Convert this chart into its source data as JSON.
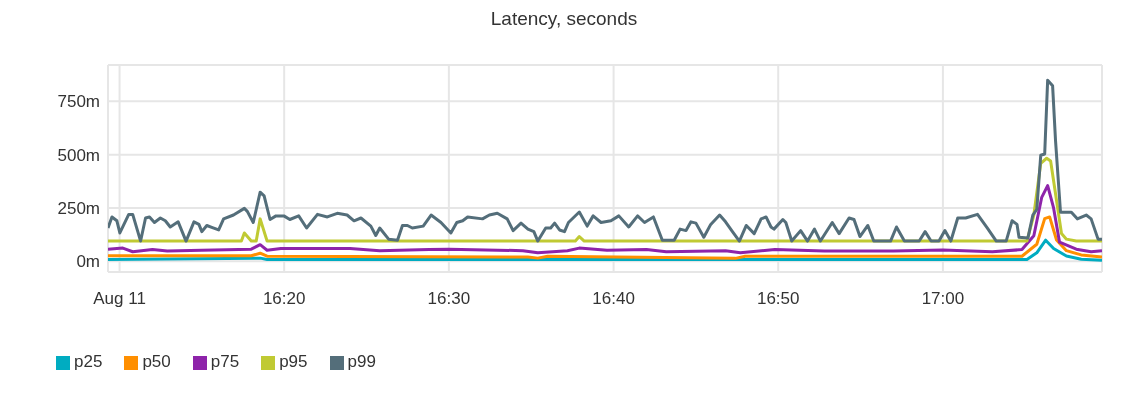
{
  "chart_data": {
    "type": "line",
    "title": "Latency, seconds",
    "xlim": [
      16.155,
      17.161
    ],
    "xticks": [
      {
        "value": 16.1667,
        "label": "Aug 11"
      },
      {
        "value": 16.3333,
        "label": "16:20"
      },
      {
        "value": 16.5,
        "label": "16:30"
      },
      {
        "value": 16.6667,
        "label": "16:40"
      },
      {
        "value": 16.8333,
        "label": "16:50"
      },
      {
        "value": 17.0,
        "label": "17:00"
      }
    ],
    "ylim": [
      -50,
      920
    ],
    "yticks": [
      {
        "value": 0,
        "label": "0m"
      },
      {
        "value": 250,
        "label": "250m"
      },
      {
        "value": 500,
        "label": "500m"
      },
      {
        "value": 750,
        "label": "750m"
      }
    ],
    "grid": true,
    "legend": "bottom left",
    "series": [
      {
        "name": "p25",
        "color": "#00acc1",
        "x": [
          16.155,
          16.309,
          16.316,
          17.085,
          17.095,
          17.104,
          17.112,
          17.125,
          17.14,
          17.161
        ],
        "values": [
          9,
          15,
          9,
          9,
          40,
          99,
          60,
          25,
          10,
          5
        ]
      },
      {
        "name": "p50",
        "color": "#ff8f00",
        "x": [
          16.155,
          16.3,
          16.309,
          16.316,
          16.58,
          16.59,
          16.6,
          16.79,
          16.8,
          17.08,
          17.095,
          17.103,
          17.108,
          17.115,
          17.125,
          17.14,
          17.161
        ],
        "values": [
          26,
          26,
          38,
          24,
          20,
          15,
          24,
          14,
          24,
          24,
          80,
          200,
          208,
          100,
          50,
          30,
          20
        ]
      },
      {
        "name": "p75",
        "color": "#8e24aa",
        "x": [
          16.155,
          16.17,
          16.18,
          16.2,
          16.215,
          16.25,
          16.3,
          16.309,
          16.316,
          16.33,
          16.4,
          16.43,
          16.48,
          16.5,
          16.575,
          16.59,
          16.62,
          16.632,
          16.66,
          16.7,
          16.72,
          16.78,
          16.795,
          16.83,
          16.88,
          16.95,
          17.0,
          17.05,
          17.08,
          17.092,
          17.1,
          17.106,
          17.112,
          17.118,
          17.135,
          17.15,
          17.161
        ],
        "values": [
          57,
          62,
          45,
          55,
          48,
          52,
          57,
          78,
          52,
          60,
          60,
          50,
          55,
          57,
          50,
          40,
          50,
          62,
          52,
          55,
          45,
          50,
          40,
          55,
          48,
          48,
          53,
          45,
          55,
          120,
          300,
          355,
          250,
          90,
          57,
          45,
          50
        ]
      },
      {
        "name": "p95",
        "color": "#c0ca33",
        "x": [
          16.155,
          16.29,
          16.293,
          16.3,
          16.305,
          16.309,
          16.316,
          16.628,
          16.632,
          16.637,
          17.085,
          17.092,
          17.099,
          17.105,
          17.109,
          17.12,
          17.125,
          17.135,
          17.161
        ],
        "values": [
          95,
          95,
          133,
          95,
          95,
          199,
          95,
          95,
          116,
          95,
          95,
          217,
          459,
          483,
          470,
          130,
          104,
          95,
          95
        ]
      },
      {
        "name": "p99",
        "color": "#546e7a",
        "x": [
          16.155,
          16.159,
          16.164,
          16.167,
          16.176,
          16.18,
          16.188,
          16.193,
          16.197,
          16.202,
          16.208,
          16.213,
          16.218,
          16.226,
          16.234,
          16.242,
          16.247,
          16.25,
          16.255,
          16.26,
          16.267,
          16.272,
          16.282,
          16.293,
          16.296,
          16.302,
          16.309,
          16.313,
          16.319,
          16.325,
          16.333,
          16.339,
          16.348,
          16.356,
          16.367,
          16.377,
          16.387,
          16.397,
          16.404,
          16.411,
          16.421,
          16.426,
          16.43,
          16.439,
          16.448,
          16.453,
          16.458,
          16.463,
          16.474,
          16.482,
          16.492,
          16.502,
          16.508,
          16.514,
          16.519,
          16.534,
          16.541,
          16.549,
          16.559,
          16.565,
          16.573,
          16.58,
          16.586,
          16.59,
          16.598,
          16.603,
          16.607,
          16.612,
          16.617,
          16.621,
          16.632,
          16.64,
          16.646,
          16.654,
          16.664,
          16.672,
          16.682,
          16.691,
          16.698,
          16.707,
          16.716,
          16.728,
          16.734,
          16.74,
          16.745,
          16.75,
          16.758,
          16.765,
          16.774,
          16.78,
          16.787,
          16.794,
          16.801,
          16.809,
          16.816,
          16.821,
          16.826,
          16.829,
          16.838,
          16.841,
          16.847,
          16.856,
          16.863,
          16.87,
          16.876,
          16.888,
          16.895,
          16.905,
          16.91,
          16.916,
          16.924,
          16.93,
          16.947,
          16.953,
          16.961,
          16.976,
          16.982,
          16.988,
          16.996,
          17.002,
          17.008,
          17.015,
          17.023,
          17.035,
          17.045,
          17.054,
          17.064,
          17.07,
          17.075,
          17.077,
          17.086,
          17.091,
          17.095,
          17.099,
          17.103,
          17.106,
          17.111,
          17.114,
          17.119,
          17.13,
          17.136,
          17.145,
          17.15,
          17.157,
          17.161
        ],
        "values": [
          156,
          208,
          190,
          133,
          220,
          220,
          95,
          203,
          208,
          182,
          203,
          190,
          161,
          185,
          95,
          185,
          173,
          139,
          168,
          159,
          147,
          199,
          217,
          248,
          234,
          182,
          324,
          307,
          196,
          213,
          213,
          196,
          213,
          156,
          220,
          208,
          225,
          217,
          190,
          203,
          165,
          121,
          156,
          104,
          99,
          168,
          168,
          156,
          165,
          217,
          182,
          133,
          182,
          190,
          208,
          199,
          217,
          225,
          199,
          144,
          179,
          151,
          139,
          95,
          156,
          156,
          179,
          147,
          139,
          182,
          231,
          165,
          213,
          182,
          190,
          213,
          161,
          213,
          182,
          208,
          99,
          99,
          151,
          144,
          185,
          179,
          113,
          173,
          217,
          185,
          139,
          95,
          168,
          130,
          199,
          208,
          161,
          151,
          196,
          182,
          95,
          144,
          95,
          151,
          95,
          182,
          130,
          203,
          196,
          116,
          168,
          95,
          95,
          161,
          95,
          95,
          139,
          95,
          95,
          144,
          95,
          203,
          203,
          220,
          156,
          95,
          95,
          190,
          173,
          113,
          109,
          217,
          243,
          497,
          503,
          849,
          823,
          563,
          230,
          230,
          199,
          217,
          199,
          104,
          104
        ]
      }
    ]
  }
}
